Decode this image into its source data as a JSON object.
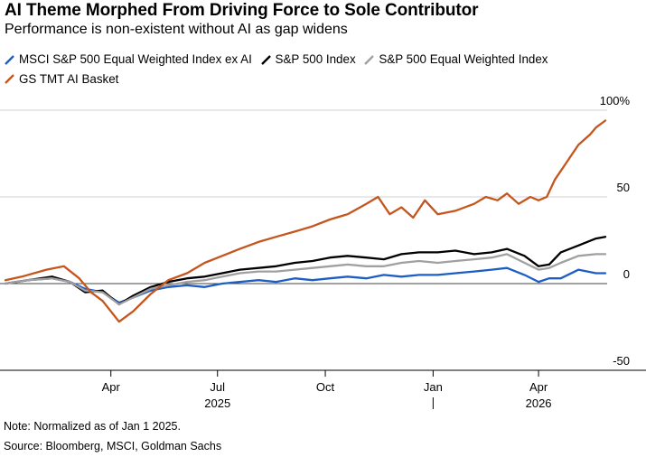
{
  "header": {
    "title": "AI Theme Morphed From Driving Force to Sole Contributor",
    "subtitle": "Performance is non-existent without AI as gap widens"
  },
  "footer": {
    "note": "Note: Normalized as of Jan 1 2025.",
    "source": "Source: Bloomberg, MSCI, Goldman Sachs"
  },
  "chart_data": {
    "type": "line",
    "y_ticks": [
      {
        "value": 100,
        "label": "100%"
      },
      {
        "value": 50,
        "label": "50"
      },
      {
        "value": 0,
        "label": "0"
      },
      {
        "value": -50,
        "label": "-50"
      }
    ],
    "ylim": [
      -50,
      100
    ],
    "xlim": [
      "2025-01-01",
      "2026-05-28"
    ],
    "x_ticks": [
      {
        "date": "2025-04-01",
        "label": "Apr"
      },
      {
        "date": "2025-07-01",
        "label": "Jul"
      },
      {
        "date": "2025-10-01",
        "label": "Oct"
      },
      {
        "date": "2026-01-01",
        "label": "Jan"
      },
      {
        "date": "2026-04-01",
        "label": "Apr"
      }
    ],
    "x_year_labels": [
      {
        "date": "2025-07-01",
        "label": "2025"
      },
      {
        "date": "2026-04-01",
        "label": "2026"
      }
    ],
    "year_divider_date": "2026-01-01",
    "grid": "horizontal",
    "legend_position": "top",
    "series": [
      {
        "name": "MSCI S&P 500 Equal Weighted Index ex AI",
        "color": "#1d5ec4",
        "x": [
          "2025-01-01",
          "2025-01-20",
          "2025-02-10",
          "2025-02-25",
          "2025-03-10",
          "2025-03-25",
          "2025-04-08",
          "2025-04-20",
          "2025-05-05",
          "2025-05-20",
          "2025-06-05",
          "2025-06-20",
          "2025-07-05",
          "2025-07-20",
          "2025-08-05",
          "2025-08-20",
          "2025-09-05",
          "2025-09-20",
          "2025-10-05",
          "2025-10-20",
          "2025-11-05",
          "2025-11-20",
          "2025-12-05",
          "2025-12-20",
          "2026-01-05",
          "2026-01-20",
          "2026-02-05",
          "2026-02-20",
          "2026-03-05",
          "2026-03-20",
          "2026-04-01",
          "2026-04-10",
          "2026-04-20",
          "2026-05-05",
          "2026-05-20",
          "2026-05-28"
        ],
        "values": [
          0,
          2,
          3,
          1,
          -3,
          -5,
          -11,
          -8,
          -4,
          -2,
          -1,
          -2,
          0,
          1,
          2,
          1,
          3,
          2,
          3,
          4,
          3,
          5,
          4,
          5,
          5,
          6,
          7,
          8,
          9,
          5,
          1,
          3,
          3,
          8,
          6,
          6
        ]
      },
      {
        "name": "S&P 500 Index",
        "color": "#000000",
        "x": [
          "2025-01-01",
          "2025-01-20",
          "2025-02-10",
          "2025-02-25",
          "2025-03-10",
          "2025-03-25",
          "2025-04-08",
          "2025-04-20",
          "2025-05-05",
          "2025-05-20",
          "2025-06-05",
          "2025-06-20",
          "2025-07-05",
          "2025-07-20",
          "2025-08-05",
          "2025-08-20",
          "2025-09-05",
          "2025-09-20",
          "2025-10-05",
          "2025-10-20",
          "2025-11-05",
          "2025-11-20",
          "2025-12-05",
          "2025-12-20",
          "2026-01-05",
          "2026-01-20",
          "2026-02-05",
          "2026-02-20",
          "2026-03-05",
          "2026-03-20",
          "2026-04-01",
          "2026-04-10",
          "2026-04-20",
          "2026-05-05",
          "2026-05-20",
          "2026-05-28"
        ],
        "values": [
          0,
          2,
          4,
          1,
          -5,
          -4,
          -12,
          -7,
          -2,
          1,
          3,
          4,
          6,
          8,
          9,
          10,
          12,
          13,
          15,
          16,
          15,
          14,
          17,
          18,
          18,
          19,
          17,
          18,
          20,
          16,
          10,
          11,
          18,
          22,
          26,
          27
        ]
      },
      {
        "name": "S&P 500 Equal Weighted Index",
        "color": "#a0a0a0",
        "x": [
          "2025-01-01",
          "2025-01-20",
          "2025-02-10",
          "2025-02-25",
          "2025-03-10",
          "2025-03-25",
          "2025-04-08",
          "2025-04-20",
          "2025-05-05",
          "2025-05-20",
          "2025-06-05",
          "2025-06-20",
          "2025-07-05",
          "2025-07-20",
          "2025-08-05",
          "2025-08-20",
          "2025-09-05",
          "2025-09-20",
          "2025-10-05",
          "2025-10-20",
          "2025-11-05",
          "2025-11-20",
          "2025-12-05",
          "2025-12-20",
          "2026-01-05",
          "2026-01-20",
          "2026-02-05",
          "2026-02-20",
          "2026-03-05",
          "2026-03-20",
          "2026-04-01",
          "2026-04-10",
          "2026-04-20",
          "2026-05-05",
          "2026-05-20",
          "2026-05-28"
        ],
        "values": [
          0,
          2,
          3,
          1,
          -4,
          -5,
          -12,
          -8,
          -3,
          -1,
          1,
          2,
          4,
          6,
          7,
          7,
          8,
          9,
          10,
          11,
          10,
          10,
          12,
          13,
          12,
          13,
          14,
          15,
          17,
          12,
          8,
          9,
          12,
          16,
          17,
          17
        ]
      },
      {
        "name": "GS TMT AI Basket",
        "color": "#c4561d",
        "x": [
          "2025-01-01",
          "2025-01-15",
          "2025-02-05",
          "2025-02-20",
          "2025-03-05",
          "2025-03-15",
          "2025-03-25",
          "2025-04-08",
          "2025-04-20",
          "2025-05-05",
          "2025-05-20",
          "2025-06-05",
          "2025-06-20",
          "2025-07-05",
          "2025-07-20",
          "2025-08-05",
          "2025-08-20",
          "2025-09-05",
          "2025-09-20",
          "2025-10-05",
          "2025-10-20",
          "2025-11-05",
          "2025-11-15",
          "2025-11-25",
          "2025-12-05",
          "2025-12-15",
          "2025-12-25",
          "2026-01-05",
          "2026-01-20",
          "2026-02-05",
          "2026-02-15",
          "2026-02-25",
          "2026-03-05",
          "2026-03-15",
          "2026-03-25",
          "2026-04-01",
          "2026-04-08",
          "2026-04-15",
          "2026-04-25",
          "2026-05-05",
          "2026-05-15",
          "2026-05-20",
          "2026-05-28"
        ],
        "values": [
          2,
          4,
          8,
          10,
          3,
          -5,
          -10,
          -22,
          -16,
          -6,
          2,
          6,
          12,
          16,
          20,
          24,
          27,
          30,
          33,
          37,
          40,
          46,
          50,
          40,
          44,
          38,
          48,
          40,
          42,
          46,
          50,
          48,
          52,
          46,
          50,
          48,
          50,
          60,
          70,
          80,
          86,
          90,
          94
        ]
      }
    ]
  }
}
